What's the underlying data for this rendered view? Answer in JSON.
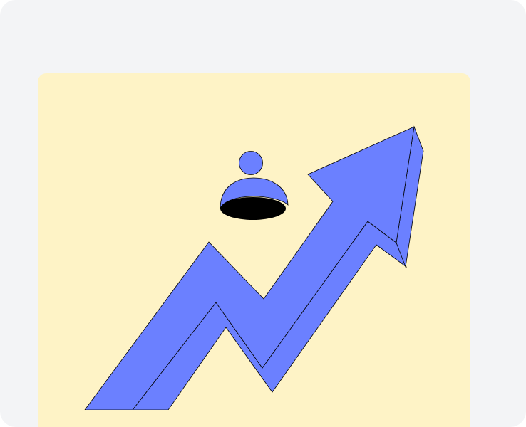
{
  "colors": {
    "page_background": "#f3f4f6",
    "card_background": "#fef3c6",
    "arrow_fill": "#6b80ff",
    "arrow_shade": "#6b80ff",
    "outline": "#000000",
    "person_fill": "#6b80ff",
    "hole_fill": "#000000"
  },
  "illustration": {
    "subject": "rising-arrow",
    "secondary": "person-emerging-from-hole"
  }
}
